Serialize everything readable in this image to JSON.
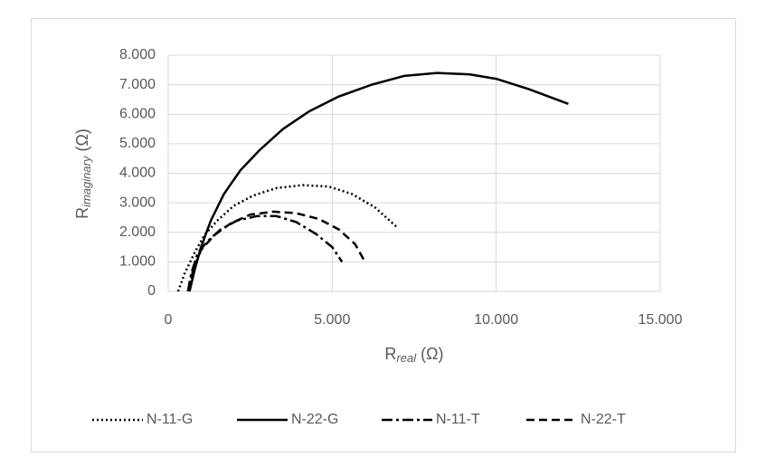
{
  "chart_data": {
    "type": "line",
    "x_label": {
      "text": "R",
      "sub": "real",
      "unit": "(Ω)"
    },
    "y_label": {
      "text": "R",
      "sub": "imaginary",
      "unit": "(Ω)"
    },
    "xlim": [
      0,
      15000
    ],
    "xticks": [
      0,
      {
        "value": 5000,
        "label": "5.000"
      },
      {
        "value": 10000,
        "label": "10.000"
      },
      {
        "value": 15000,
        "label": "15.000"
      }
    ],
    "ylim": [
      0,
      8000
    ],
    "yticks": [
      0,
      {
        "value": 1000,
        "label": "1.000"
      },
      {
        "value": 2000,
        "label": "2.000"
      },
      {
        "value": 3000,
        "label": "3.000"
      },
      {
        "value": 4000,
        "label": "4.000"
      },
      {
        "value": 5000,
        "label": "5.000"
      },
      {
        "value": 6000,
        "label": "6.000"
      },
      {
        "value": 7000,
        "label": "7.000"
      },
      {
        "value": 8000,
        "label": "8.000"
      }
    ],
    "grid": true,
    "legend": "bottom",
    "series": [
      {
        "name": "N-11-G",
        "color": "#000000",
        "dash": "dot",
        "x": [
          300,
          500,
          800,
          1100,
          1500,
          2000,
          2600,
          3300,
          4100,
          4900,
          5600,
          6300,
          7000
        ],
        "values": [
          0,
          600,
          1300,
          1900,
          2400,
          2900,
          3250,
          3500,
          3600,
          3550,
          3300,
          2850,
          2150
        ]
      },
      {
        "name": "N-22-G",
        "color": "#000000",
        "dash": "solid",
        "x": [
          650,
          800,
          1000,
          1300,
          1700,
          2200,
          2800,
          3500,
          4300,
          5200,
          6200,
          7200,
          8200,
          9200,
          10000,
          11000,
          12200
        ],
        "values": [
          0,
          700,
          1500,
          2400,
          3300,
          4100,
          4800,
          5500,
          6100,
          6600,
          7000,
          7300,
          7400,
          7350,
          7200,
          6850,
          6350
        ]
      },
      {
        "name": "N-11-T",
        "color": "#000000",
        "dash": "dashdot",
        "x": [
          600,
          700,
          900,
          1200,
          1600,
          2100,
          2700,
          3300,
          3900,
          4500,
          5000,
          5300
        ],
        "values": [
          0,
          600,
          1300,
          1700,
          2100,
          2400,
          2550,
          2550,
          2350,
          1950,
          1500,
          1000
        ]
      },
      {
        "name": "N-22-T",
        "color": "#000000",
        "dash": "dash",
        "x": [
          650,
          750,
          1000,
          1400,
          1900,
          2500,
          3200,
          3900,
          4600,
          5200,
          5700,
          6000
        ],
        "values": [
          0,
          700,
          1400,
          1900,
          2300,
          2600,
          2700,
          2650,
          2450,
          2100,
          1600,
          1000
        ]
      }
    ]
  }
}
